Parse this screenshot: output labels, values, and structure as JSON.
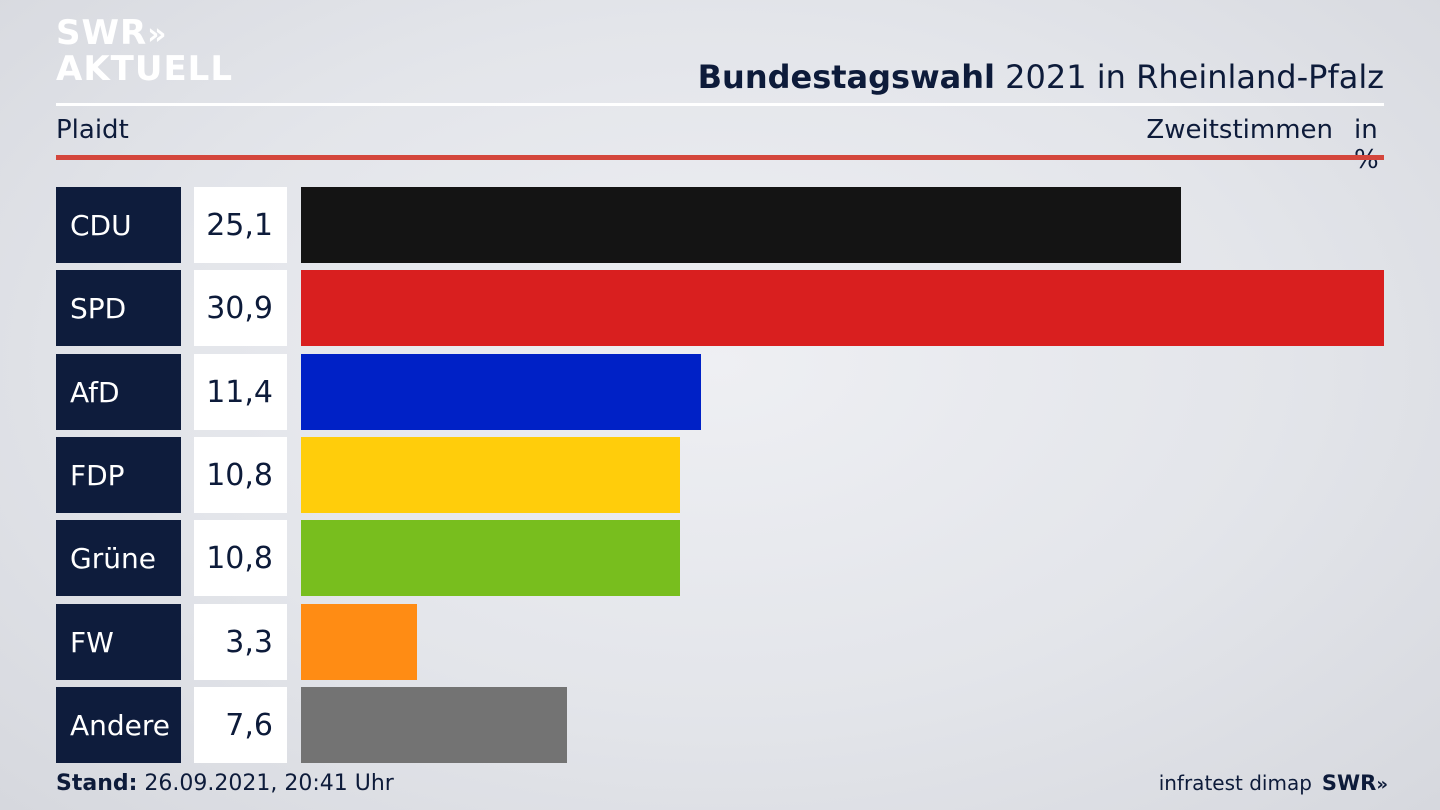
{
  "logo": {
    "line1": "SWR",
    "line1_chevrons": "»",
    "line2": "AKTUELL"
  },
  "header": {
    "title_bold": "Bundestagswahl",
    "title_rest": "2021 in Rheinland-Pfalz",
    "place": "Plaidt",
    "metric": "Zweitstimmen",
    "unit": "in %"
  },
  "chart_data": {
    "type": "bar",
    "orientation": "horizontal",
    "title": "Bundestagswahl 2021 in Rheinland-Pfalz",
    "subtitle": "Plaidt",
    "metric": "Zweitstimmen",
    "unit": "in %",
    "categories": [
      "CDU",
      "SPD",
      "AfD",
      "FDP",
      "Grüne",
      "FW",
      "Andere"
    ],
    "values": [
      25.1,
      30.9,
      11.4,
      10.8,
      10.8,
      3.3,
      7.6
    ],
    "value_labels": [
      "25,1",
      "30,9",
      "11,4",
      "10,8",
      "10,8",
      "3,3",
      "7,6"
    ],
    "colors": [
      "#141414",
      "#d91f1f",
      "#0021c6",
      "#ffcd0b",
      "#78be1e",
      "#ff8c14",
      "#737373"
    ],
    "xlim": [
      0,
      30.9
    ],
    "grid": false
  },
  "footer": {
    "stand_label": "Stand:",
    "stand_value": "26.09.2021, 20:41 Uhr",
    "source": "infratest dimap",
    "brand": "SWR",
    "brand_chevrons": "»"
  }
}
